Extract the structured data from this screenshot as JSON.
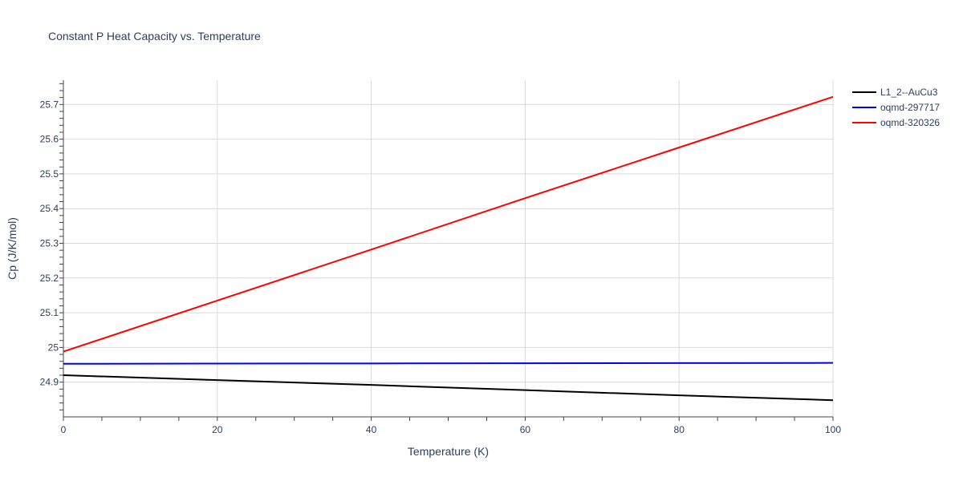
{
  "chart_data": {
    "type": "line",
    "title": "Constant P Heat Capacity vs. Temperature",
    "xlabel": "Temperature (K)",
    "ylabel": "Cp (J/K/mol)",
    "xlim": [
      0,
      100
    ],
    "ylim": [
      24.8,
      25.77
    ],
    "x_ticks": [
      0,
      20,
      40,
      60,
      80,
      100
    ],
    "y_ticks": [
      24.9,
      25,
      25.1,
      25.2,
      25.3,
      25.4,
      25.5,
      25.6,
      25.7
    ],
    "y_tick_labels": [
      "24.9",
      "25",
      "25.1",
      "25.2",
      "25.3",
      "25.4",
      "25.5",
      "25.6",
      "25.7"
    ],
    "grid": true,
    "legend_position": "top-right",
    "x": [
      0,
      20,
      40,
      60,
      80,
      100
    ],
    "series": [
      {
        "name": "L1_2--AuCu3",
        "color": "#000000",
        "values": [
          24.92,
          24.906,
          24.892,
          24.877,
          24.862,
          24.848
        ]
      },
      {
        "name": "oqmd-297717",
        "color": "#0000ff",
        "values": [
          24.953,
          24.9535,
          24.954,
          24.9545,
          24.955,
          24.9555
        ]
      },
      {
        "name": "oqmd-320326",
        "color": "#ff0000",
        "values": [
          24.988,
          25.135,
          25.282,
          25.43,
          25.576,
          25.722
        ]
      }
    ]
  }
}
